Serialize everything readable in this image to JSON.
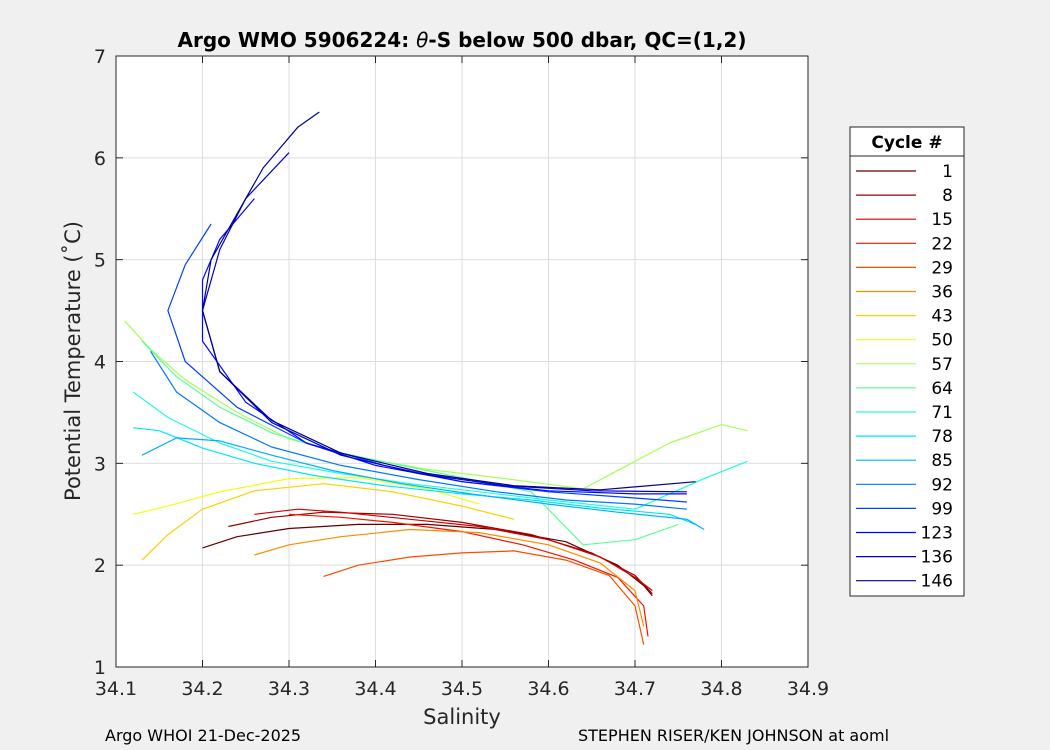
{
  "chart_data": {
    "type": "line",
    "title_prefix": "Argo WMO 5906224: ",
    "title_symbol": "θ",
    "title_suffix": "-S below 500 dbar,  QC=(1,2)",
    "xlabel": "Salinity",
    "ylabel": "Potential Temperature (˚C)",
    "xlim": [
      34.1,
      34.9
    ],
    "ylim": [
      1,
      7
    ],
    "xticks": [
      "34.1",
      "34.2",
      "34.3",
      "34.4",
      "34.5",
      "34.6",
      "34.7",
      "34.8",
      "34.9"
    ],
    "yticks": [
      "1",
      "2",
      "3",
      "4",
      "5",
      "6",
      "7"
    ],
    "grid": true,
    "legend_placement": "outside-right",
    "legend_title": "Cycle #",
    "legend": [
      {
        "label": "1",
        "color": "#600000"
      },
      {
        "label": "8",
        "color": "#9a0000"
      },
      {
        "label": "15",
        "color": "#d10000"
      },
      {
        "label": "22",
        "color": "#ff1000"
      },
      {
        "label": "29",
        "color": "#ff4a00"
      },
      {
        "label": "36",
        "color": "#ff8c00"
      },
      {
        "label": "43",
        "color": "#ffcf00"
      },
      {
        "label": "50",
        "color": "#f0ff10"
      },
      {
        "label": "57",
        "color": "#a6ff58"
      },
      {
        "label": "64",
        "color": "#5cff9a"
      },
      {
        "label": "71",
        "color": "#20ffd8"
      },
      {
        "label": "78",
        "color": "#00e6ff"
      },
      {
        "label": "85",
        "color": "#00b0ff"
      },
      {
        "label": "92",
        "color": "#0078ff"
      },
      {
        "label": "99",
        "color": "#0040ff"
      },
      {
        "label": "123",
        "color": "#0008ff"
      },
      {
        "label": "136",
        "color": "#0000c8"
      },
      {
        "label": "146",
        "color": "#00008e"
      }
    ],
    "series": [
      {
        "cycle": "1",
        "color": "#600000",
        "x": [
          34.2,
          34.24,
          34.3,
          34.38,
          34.46,
          34.54,
          34.62,
          34.68,
          34.71,
          34.72
        ],
        "y": [
          2.17,
          2.28,
          2.36,
          2.4,
          2.4,
          2.35,
          2.23,
          2.0,
          1.8,
          1.7
        ]
      },
      {
        "cycle": "8",
        "color": "#9a0000",
        "x": [
          34.23,
          34.28,
          34.34,
          34.42,
          34.5,
          34.58,
          34.65,
          34.7,
          34.72
        ],
        "y": [
          2.38,
          2.47,
          2.52,
          2.5,
          2.42,
          2.3,
          2.12,
          1.9,
          1.72
        ]
      },
      {
        "cycle": "15",
        "color": "#d10000",
        "x": [
          34.26,
          34.31,
          34.36,
          34.44,
          34.52,
          34.6,
          34.66,
          34.7,
          34.72
        ],
        "y": [
          2.5,
          2.55,
          2.52,
          2.45,
          2.38,
          2.25,
          2.08,
          1.88,
          1.75
        ]
      },
      {
        "cycle": "22",
        "color": "#ff1000",
        "x": [
          34.3,
          34.36,
          34.42,
          34.5,
          34.57,
          34.63,
          34.68,
          34.71,
          34.715
        ],
        "y": [
          2.5,
          2.47,
          2.42,
          2.33,
          2.2,
          2.05,
          1.88,
          1.6,
          1.3
        ]
      },
      {
        "cycle": "29",
        "color": "#ff4a00",
        "x": [
          34.34,
          34.38,
          34.44,
          34.5,
          34.56,
          34.62,
          34.67,
          34.7,
          34.71
        ],
        "y": [
          1.89,
          2.0,
          2.08,
          2.12,
          2.14,
          2.05,
          1.9,
          1.6,
          1.22
        ]
      },
      {
        "cycle": "36",
        "color": "#ff8c00",
        "x": [
          34.26,
          34.3,
          34.36,
          34.44,
          34.52,
          34.6,
          34.66,
          34.7,
          34.71
        ],
        "y": [
          2.1,
          2.2,
          2.28,
          2.35,
          2.32,
          2.2,
          2.02,
          1.75,
          1.4
        ]
      },
      {
        "cycle": "43",
        "color": "#ffcf00",
        "x": [
          34.13,
          34.16,
          34.2,
          34.26,
          34.34,
          34.42,
          34.5,
          34.56
        ],
        "y": [
          2.05,
          2.3,
          2.55,
          2.73,
          2.8,
          2.72,
          2.58,
          2.45
        ]
      },
      {
        "cycle": "50",
        "color": "#f0ff10",
        "x": [
          34.12,
          34.16,
          34.22,
          34.3,
          34.38,
          34.46,
          34.52
        ],
        "y": [
          2.5,
          2.58,
          2.72,
          2.85,
          2.86,
          2.75,
          2.6
        ]
      },
      {
        "cycle": "57",
        "color": "#a6ff58",
        "x": [
          34.11,
          34.14,
          34.18,
          34.24,
          34.3,
          34.38,
          34.46,
          34.55,
          34.64,
          34.74,
          34.8,
          34.83
        ],
        "y": [
          4.4,
          4.12,
          3.82,
          3.5,
          3.24,
          3.06,
          2.94,
          2.85,
          2.75,
          3.2,
          3.38,
          3.32
        ]
      },
      {
        "cycle": "64",
        "color": "#5cff9a",
        "x": [
          34.13,
          34.17,
          34.22,
          34.28,
          34.35,
          34.43,
          34.5,
          34.58,
          34.64,
          34.7,
          34.75
        ],
        "y": [
          4.2,
          3.85,
          3.55,
          3.3,
          3.12,
          2.98,
          2.86,
          2.72,
          2.2,
          2.25,
          2.4
        ]
      },
      {
        "cycle": "71",
        "color": "#20ffd8",
        "x": [
          34.12,
          34.16,
          34.22,
          34.28,
          34.36,
          34.44,
          34.52,
          34.6,
          34.7,
          34.78,
          34.83
        ],
        "y": [
          3.7,
          3.45,
          3.2,
          3.02,
          2.9,
          2.8,
          2.72,
          2.64,
          2.55,
          2.85,
          3.02
        ]
      },
      {
        "cycle": "78",
        "color": "#00e6ff",
        "x": [
          34.12,
          34.15,
          34.2,
          34.26,
          34.33,
          34.41,
          34.5,
          34.58,
          34.66,
          34.74,
          34.77
        ],
        "y": [
          3.35,
          3.32,
          3.15,
          3.0,
          2.88,
          2.78,
          2.7,
          2.64,
          2.56,
          2.5,
          2.4
        ]
      },
      {
        "cycle": "85",
        "color": "#00b0ff",
        "x": [
          34.13,
          34.17,
          34.22,
          34.28,
          34.35,
          34.43,
          34.51,
          34.6,
          34.68,
          34.76,
          34.78
        ],
        "y": [
          3.08,
          3.25,
          3.22,
          3.08,
          2.93,
          2.8,
          2.7,
          2.6,
          2.52,
          2.45,
          2.35
        ]
      },
      {
        "cycle": "92",
        "color": "#0078ff",
        "x": [
          34.14,
          34.17,
          34.22,
          34.28,
          34.36,
          34.45,
          34.54,
          34.62,
          34.7,
          34.76
        ],
        "y": [
          4.1,
          3.7,
          3.4,
          3.16,
          2.98,
          2.84,
          2.72,
          2.64,
          2.6,
          2.55
        ]
      },
      {
        "cycle": "99",
        "color": "#0040ff",
        "x": [
          34.21,
          34.18,
          34.16,
          34.18,
          34.24,
          34.32,
          34.41,
          34.5,
          34.6,
          34.7,
          34.76
        ],
        "y": [
          5.35,
          4.95,
          4.5,
          4.0,
          3.55,
          3.2,
          2.98,
          2.82,
          2.72,
          2.66,
          2.62
        ]
      },
      {
        "cycle": "123",
        "color": "#0008ff",
        "x": [
          34.26,
          34.22,
          34.2,
          34.2,
          34.25,
          34.32,
          34.4,
          34.5,
          34.6,
          34.7,
          34.76
        ],
        "y": [
          5.6,
          5.2,
          4.8,
          4.2,
          3.6,
          3.2,
          2.98,
          2.82,
          2.73,
          2.7,
          2.7
        ]
      },
      {
        "cycle": "136",
        "color": "#0000c8",
        "x": [
          34.3,
          34.25,
          34.22,
          34.2,
          34.22,
          34.28,
          34.36,
          34.45,
          34.55,
          34.65,
          34.76
        ],
        "y": [
          6.05,
          5.6,
          5.1,
          4.5,
          3.9,
          3.4,
          3.08,
          2.9,
          2.78,
          2.73,
          2.72
        ]
      },
      {
        "cycle": "146",
        "color": "#00008e",
        "x": [
          34.335,
          34.31,
          34.27,
          34.24,
          34.21,
          34.2,
          34.22,
          34.28,
          34.36,
          34.46,
          34.56,
          34.66,
          34.77
        ],
        "y": [
          6.45,
          6.3,
          5.9,
          5.45,
          5.0,
          4.5,
          3.9,
          3.42,
          3.1,
          2.9,
          2.78,
          2.74,
          2.82
        ]
      }
    ]
  },
  "footer": {
    "left": "Argo WHOI 21-Dec-2025",
    "right": "STEPHEN RISER/KEN JOHNSON at aoml"
  }
}
